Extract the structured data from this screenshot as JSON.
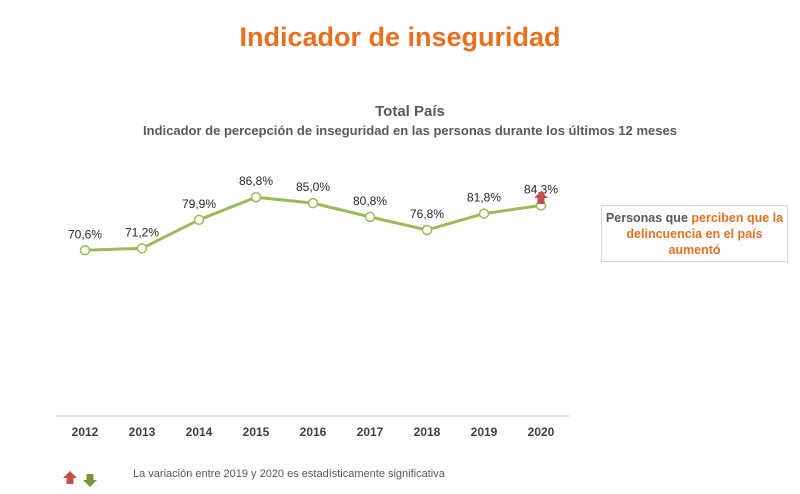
{
  "header": {
    "title": "Indicador de inseguridad"
  },
  "chart_data": {
    "type": "line",
    "title": "Total País",
    "subtitle": "Indicador de percepción de inseguridad en las personas durante los últimos 12 meses",
    "categories": [
      "2012",
      "2013",
      "2014",
      "2015",
      "2016",
      "2017",
      "2018",
      "2019",
      "2020"
    ],
    "values": [
      70.6,
      71.2,
      79.9,
      86.8,
      85.0,
      80.8,
      76.8,
      81.8,
      84.3
    ],
    "data_labels": [
      "70,6%",
      "71,2%",
      "79,9%",
      "86,8%",
      "85,0%",
      "80,8%",
      "76,8%",
      "81,8%",
      "84,3%"
    ],
    "ylim": [
      20,
      100
    ],
    "grid": false,
    "legend": "none",
    "line_color": "#9bbb59",
    "marker_fill": "#ffffff",
    "highlight": {
      "category": "2020",
      "indicator": "up-arrow",
      "color": "#c0504d"
    }
  },
  "callout": {
    "prefix": "Personas que ",
    "highlight": "perciben que la delincuencia en el país aumentó",
    "highlight_color": "#e6701e"
  },
  "footer": {
    "note": "La variación entre 2019 y 2020 es estadísticamente significativa",
    "legend_icons": [
      {
        "name": "up-arrow-icon",
        "color": "#c0504d"
      },
      {
        "name": "down-arrow-icon",
        "color": "#77933c"
      }
    ]
  }
}
